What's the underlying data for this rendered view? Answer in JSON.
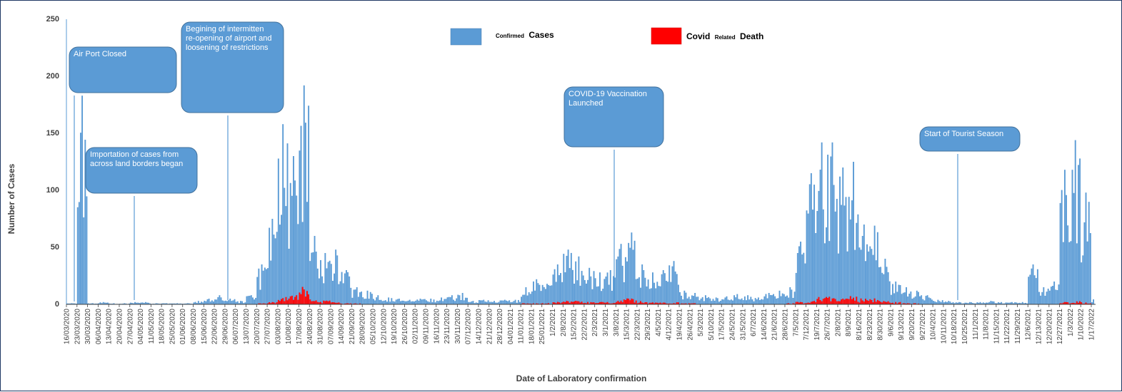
{
  "chart_data": {
    "type": "bar",
    "title": "",
    "ylabel": "Number of Cases",
    "xlabel": "Date of Laboratory confirmation",
    "ylim": [
      0,
      250
    ],
    "yticks": [
      0,
      50,
      100,
      150,
      200,
      250
    ],
    "grid": false,
    "legend_position": "top-center",
    "x_tick_labels": [
      "16/03/2020",
      "23/03/2020",
      "30/03/2020",
      "06/04/2020",
      "13/04/2020",
      "20/04/2020",
      "27/04/2020",
      "04/05/2020",
      "11/05/2020",
      "18/05/2020",
      "25/05/2020",
      "01/06/2020",
      "08/06/2020",
      "15/06/2020",
      "22/06/2020",
      "29/06/2020",
      "06/07/2020",
      "13/07/2020",
      "20/07/2020",
      "27/07/2020",
      "03/08/2020",
      "10/08/2020",
      "17/08/2020",
      "24/08/2020",
      "31/08/2020",
      "07/09/2020",
      "14/09/2020",
      "21/09/2020",
      "28/09/2020",
      "05/10/2020",
      "12/10/2020",
      "19/10/2020",
      "26/10/2020",
      "02/11/2020",
      "09/11/2020",
      "16/11/2020",
      "23/11/2020",
      "30/11/2020",
      "07/12/2020",
      "14/12/2020",
      "21/12/2020",
      "28/12/2020",
      "04/01/2021",
      "11/01/2021",
      "18/01/2021",
      "25/01/2021",
      "1/2/2021",
      "2/8/2021",
      "15/2/2021",
      "22/2/2021",
      "2/3/2021",
      "3/1/2021",
      "3/8/2021",
      "15/3/2021",
      "22/3/2021",
      "29/3/2021",
      "4/5/2021",
      "4/12/2021",
      "19/4/2021",
      "26/4/2021",
      "5/3/2021",
      "5/10/2021",
      "17/5/2021",
      "24/5/2021",
      "31/5/2021",
      "6/7/2021",
      "14/6/2021",
      "21/6/2021",
      "28/6/2021",
      "7/5/2021",
      "7/12/2021",
      "19/7/2021",
      "26/7/2021",
      "2/8/2021",
      "8/9/2021",
      "8/16/2021",
      "8/23/2021",
      "8/30/2021",
      "9/6/2021",
      "9/13/2021",
      "9/20/2021",
      "9/27/2021",
      "10/4/2021",
      "10/11/2021",
      "10/18/2021",
      "10/25/2021",
      "11/1/2021",
      "11/8/2021",
      "11/15/2021",
      "11/22/2021",
      "11/29/2021",
      "12/6/2021",
      "12/13/2021",
      "12/20/2021",
      "12/27/2021",
      "1/3/2022",
      "1/10/2022",
      "1/17/2022"
    ],
    "series": [
      {
        "name": "Confirmed Cases",
        "color": "#5b9bd5",
        "weekly_values": [
          1,
          183,
          1,
          2,
          1,
          1,
          2,
          2,
          1,
          1,
          1,
          1,
          3,
          5,
          8,
          5,
          3,
          8,
          35,
          75,
          158,
          130,
          192,
          60,
          45,
          48,
          30,
          15,
          12,
          8,
          6,
          5,
          4,
          5,
          5,
          6,
          8,
          10,
          3,
          4,
          3,
          4,
          4,
          15,
          22,
          18,
          35,
          48,
          42,
          32,
          28,
          30,
          53,
          63,
          35,
          28,
          30,
          38,
          12,
          10,
          8,
          6,
          7,
          9,
          8,
          6,
          10,
          12,
          15,
          55,
          115,
          142,
          142,
          120,
          125,
          70,
          69,
          40,
          20,
          15,
          12,
          8,
          4,
          3,
          2,
          2,
          2,
          3,
          2,
          2,
          2,
          35,
          15,
          20,
          118,
          144,
          98,
          5
        ]
      },
      {
        "name": "Covid Related Death",
        "color": "#ff0000",
        "weekly_values": [
          0,
          0,
          0,
          0,
          0,
          0,
          0,
          0,
          0,
          0,
          0,
          0,
          0,
          0,
          0,
          0,
          0,
          0,
          1,
          2,
          8,
          10,
          14,
          4,
          3,
          2,
          1,
          1,
          0,
          0,
          0,
          0,
          0,
          0,
          0,
          0,
          0,
          0,
          0,
          0,
          0,
          0,
          0,
          1,
          1,
          1,
          2,
          3,
          3,
          2,
          2,
          2,
          4,
          5,
          3,
          2,
          2,
          2,
          1,
          1,
          0,
          0,
          0,
          0,
          0,
          0,
          0,
          0,
          1,
          2,
          3,
          6,
          7,
          6,
          7,
          5,
          5,
          3,
          2,
          1,
          1,
          0,
          0,
          0,
          0,
          0,
          0,
          0,
          0,
          0,
          0,
          0,
          0,
          0,
          2,
          3,
          2,
          0
        ]
      }
    ],
    "annotations": [
      {
        "text": [
          "Air  Port  Closed"
        ],
        "at": "16/03/2020"
      },
      {
        "text": [
          "Importation of cases from",
          "across land borders began"
        ],
        "at": "27/04/2020"
      },
      {
        "text": [
          "Begining of intermitten",
          "re-opening of airport and",
          "loosening of restrictions"
        ],
        "at": "29/06/2020"
      },
      {
        "text": [
          "COVID-19 Vaccination",
          "Launched"
        ],
        "at": "3/8/2021"
      },
      {
        "text": [
          "Start of Tourist Season"
        ],
        "at": "10/18/2021"
      }
    ]
  },
  "legend": {
    "confirmed_small": "Confirmed",
    "confirmed_big": "Cases",
    "death_a": "Covid",
    "death_small": "Related",
    "death_b": "Death"
  }
}
